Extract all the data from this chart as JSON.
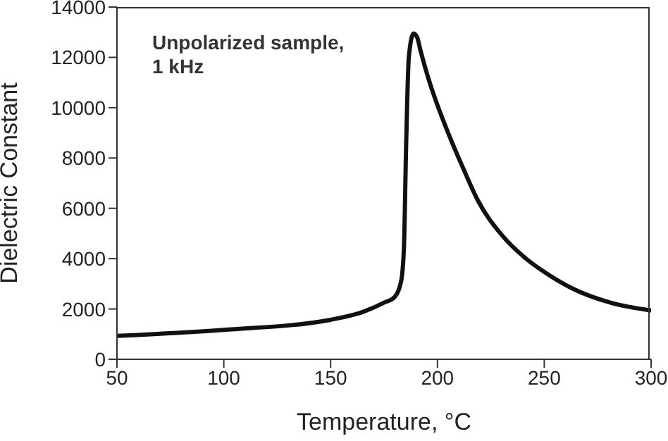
{
  "chart_data": {
    "type": "line",
    "xlabel": "Temperature, °C",
    "ylabel": "Dielectric Constant",
    "annotations": [
      "Unpolarized sample,\n1 kHz"
    ],
    "xlim": [
      50,
      300
    ],
    "xticks": [
      50,
      100,
      150,
      200,
      250,
      300
    ],
    "ylim": [
      0,
      14000
    ],
    "yticks": [
      0,
      2000,
      4000,
      6000,
      8000,
      10000,
      12000,
      14000
    ],
    "line_style": "solid",
    "series": [
      {
        "color": "#111111",
        "x": [
          50,
          100,
          150,
          165,
          175,
          180,
          183,
          184.3,
          185.4,
          186.6,
          188.8,
          190.5,
          192,
          196,
          200,
          205,
          212,
          219,
          230,
          241,
          250,
          263,
          281,
          300
        ],
        "values": [
          930,
          1170,
          1570,
          1880,
          2250,
          2480,
          3100,
          4400,
          8700,
          12000,
          12950,
          12800,
          12300,
          11100,
          10100,
          9000,
          7600,
          6300,
          4950,
          4030,
          3470,
          2820,
          2250,
          1940
        ]
      }
    ]
  }
}
